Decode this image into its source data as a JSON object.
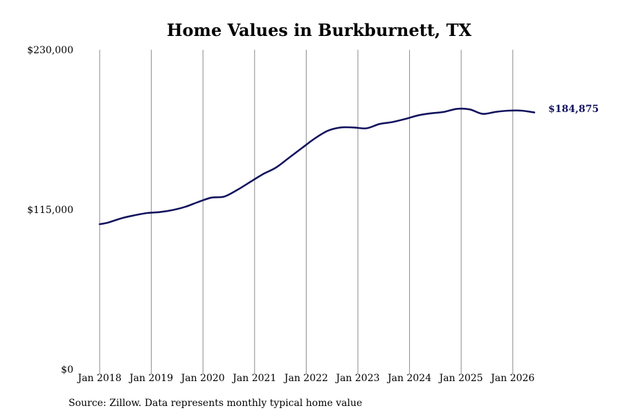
{
  "chart_data": {
    "type": "line",
    "title": "Home Values in Burkburnett, TX",
    "xlabel": "",
    "ylabel": "",
    "ylim": [
      0,
      230000
    ],
    "xlim": [
      "2018-01",
      "2026-07"
    ],
    "grid": "vertical",
    "legend": "none",
    "colors": {
      "line": "#12125e",
      "grid": "#8a8a8a"
    },
    "y_ticks": [
      {
        "value": 0,
        "label": "$0"
      },
      {
        "value": 115000,
        "label": "$115,000"
      },
      {
        "value": 230000,
        "label": "$230,000"
      }
    ],
    "x_ticks": [
      {
        "date": "2018-01",
        "label": "Jan 2018"
      },
      {
        "date": "2019-01",
        "label": "Jan 2019"
      },
      {
        "date": "2020-01",
        "label": "Jan 2020"
      },
      {
        "date": "2021-01",
        "label": "Jan 2021"
      },
      {
        "date": "2022-01",
        "label": "Jan 2022"
      },
      {
        "date": "2023-01",
        "label": "Jan 2023"
      },
      {
        "date": "2024-01",
        "label": "Jan 2024"
      },
      {
        "date": "2025-01",
        "label": "Jan 2025"
      },
      {
        "date": "2026-01",
        "label": "Jan 2026"
      }
    ],
    "series": [
      {
        "points": [
          [
            "2018-01",
            104500
          ],
          [
            "2018-03",
            105700
          ],
          [
            "2018-06",
            108700
          ],
          [
            "2018-09",
            110800
          ],
          [
            "2018-12",
            112500
          ],
          [
            "2019-03",
            113200
          ],
          [
            "2019-06",
            114700
          ],
          [
            "2019-09",
            117100
          ],
          [
            "2019-12",
            120600
          ],
          [
            "2020-03",
            123600
          ],
          [
            "2020-06",
            124400
          ],
          [
            "2020-09",
            129200
          ],
          [
            "2020-12",
            134900
          ],
          [
            "2021-03",
            140600
          ],
          [
            "2021-06",
            145300
          ],
          [
            "2021-09",
            152300
          ],
          [
            "2021-12",
            159300
          ],
          [
            "2022-03",
            166200
          ],
          [
            "2022-06",
            171700
          ],
          [
            "2022-09",
            174100
          ],
          [
            "2022-12",
            174100
          ],
          [
            "2023-03",
            173500
          ],
          [
            "2023-06",
            176600
          ],
          [
            "2023-09",
            178000
          ],
          [
            "2023-12",
            180200
          ],
          [
            "2024-03",
            182800
          ],
          [
            "2024-06",
            184300
          ],
          [
            "2024-09",
            185300
          ],
          [
            "2024-12",
            187500
          ],
          [
            "2025-03",
            187100
          ],
          [
            "2025-06",
            183900
          ],
          [
            "2025-09",
            185300
          ],
          [
            "2025-12",
            186200
          ],
          [
            "2026-03",
            186200
          ],
          [
            "2026-06",
            184875
          ]
        ]
      }
    ],
    "end_label": "$184,875",
    "source": "Source: Zillow. Data represents monthly typical home value"
  }
}
